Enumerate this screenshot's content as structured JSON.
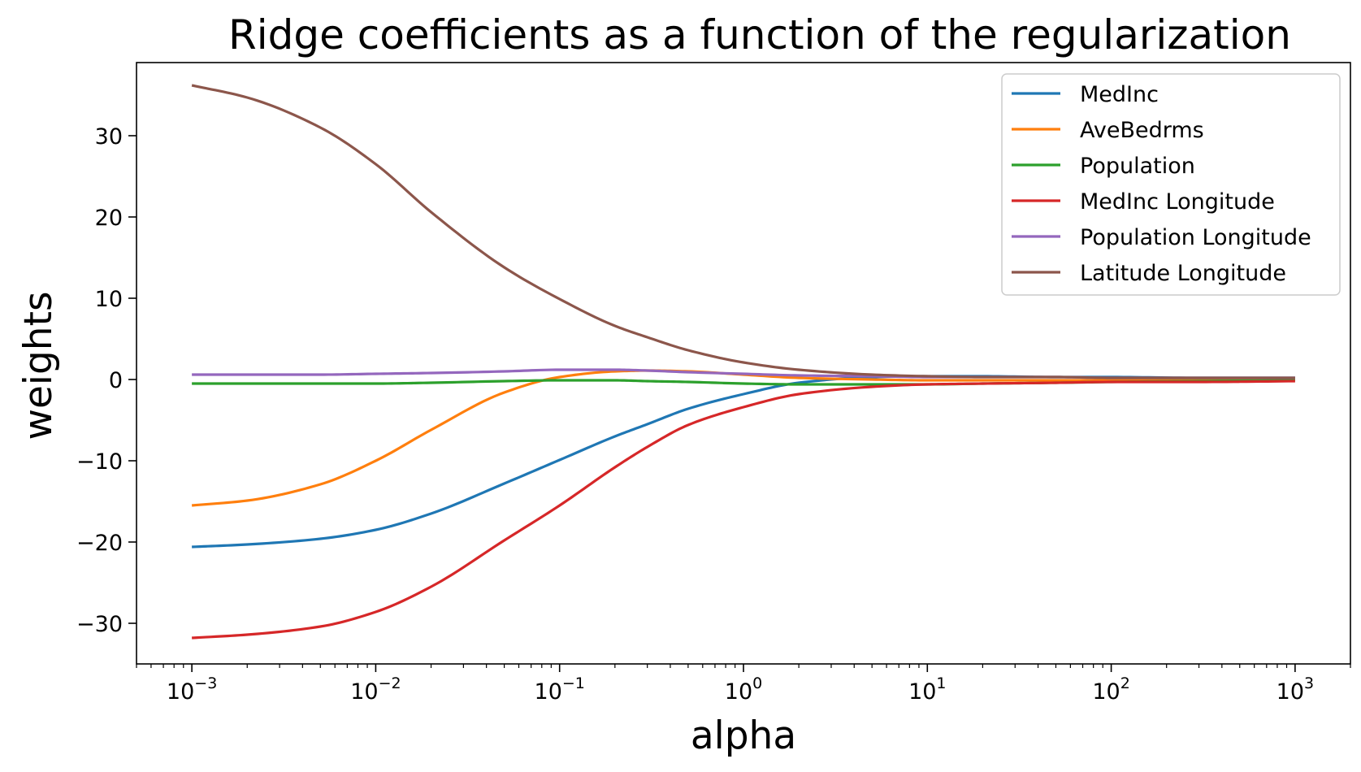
{
  "chart_data": {
    "type": "line",
    "title": "Ridge coefficients as a function of the regularization",
    "xlabel": "alpha",
    "ylabel": "weights",
    "xscale": "log",
    "xlim": [
      0.0005,
      2000
    ],
    "ylim": [
      -35,
      39
    ],
    "x_ticks": [
      {
        "value": 0.001,
        "base": "10",
        "exp": "−3"
      },
      {
        "value": 0.01,
        "base": "10",
        "exp": "−2"
      },
      {
        "value": 0.1,
        "base": "10",
        "exp": "−1"
      },
      {
        "value": 1,
        "base": "10",
        "exp": "0"
      },
      {
        "value": 10,
        "base": "10",
        "exp": "1"
      },
      {
        "value": 100,
        "base": "10",
        "exp": "2"
      },
      {
        "value": 1000,
        "base": "10",
        "exp": "3"
      }
    ],
    "y_ticks": [
      {
        "value": -30,
        "label": "−30"
      },
      {
        "value": -20,
        "label": "−20"
      },
      {
        "value": -10,
        "label": "−10"
      },
      {
        "value": 0,
        "label": "0"
      },
      {
        "value": 10,
        "label": "10"
      },
      {
        "value": 20,
        "label": "20"
      },
      {
        "value": 30,
        "label": "30"
      }
    ],
    "grid": false,
    "legend_position": "top-right",
    "x": [
      0.001,
      0.002,
      0.005,
      0.01,
      0.02,
      0.05,
      0.1,
      0.2,
      0.3,
      0.5,
      1,
      2,
      5,
      10,
      20,
      50,
      100,
      300,
      1000
    ],
    "series": [
      {
        "name": "MedInc",
        "color": "#1f77b4",
        "values": [
          -20.6,
          -20.3,
          -19.6,
          -18.5,
          -16.5,
          -12.8,
          -9.9,
          -7.0,
          -5.5,
          -3.6,
          -1.8,
          -0.4,
          0.3,
          0.4,
          0.4,
          0.3,
          0.3,
          0.2,
          0.2
        ]
      },
      {
        "name": "AveBedrms",
        "color": "#ff7f0e",
        "values": [
          -15.5,
          -14.9,
          -12.9,
          -10.0,
          -6.2,
          -1.6,
          0.3,
          1.0,
          1.1,
          1.0,
          0.6,
          0.2,
          0.0,
          -0.1,
          -0.1,
          -0.1,
          -0.1,
          0.0,
          0.0
        ]
      },
      {
        "name": "Population",
        "color": "#2ca02c",
        "values": [
          -0.5,
          -0.5,
          -0.5,
          -0.5,
          -0.4,
          -0.2,
          -0.1,
          -0.1,
          -0.2,
          -0.3,
          -0.5,
          -0.6,
          -0.6,
          -0.6,
          -0.5,
          -0.4,
          -0.3,
          -0.2,
          -0.1
        ]
      },
      {
        "name": "MedInc Longitude",
        "color": "#d62728",
        "values": [
          -31.8,
          -31.4,
          -30.4,
          -28.6,
          -25.5,
          -19.8,
          -15.5,
          -10.8,
          -8.3,
          -5.6,
          -3.4,
          -1.8,
          -0.9,
          -0.6,
          -0.5,
          -0.4,
          -0.3,
          -0.3,
          -0.2
        ]
      },
      {
        "name": "Population Longitude",
        "color": "#9467bd",
        "values": [
          0.6,
          0.6,
          0.6,
          0.7,
          0.8,
          1.0,
          1.2,
          1.2,
          1.1,
          0.9,
          0.7,
          0.5,
          0.4,
          0.3,
          0.3,
          0.3,
          0.2,
          0.2,
          0.2
        ]
      },
      {
        "name": "Latitude Longitude",
        "color": "#8c564b",
        "values": [
          36.2,
          34.7,
          31.0,
          26.5,
          20.6,
          13.8,
          9.9,
          6.6,
          5.2,
          3.6,
          2.1,
          1.2,
          0.6,
          0.4,
          0.3,
          0.3,
          0.2,
          0.2,
          0.2
        ]
      }
    ]
  }
}
